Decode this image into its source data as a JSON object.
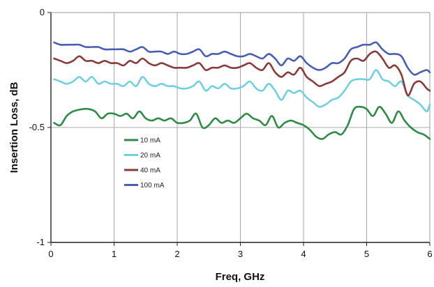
{
  "chart_data": {
    "type": "line",
    "title": "",
    "xlabel": "Freq, GHz",
    "ylabel": "Insertion Loss, dB",
    "xlim": [
      0,
      6
    ],
    "ylim": [
      -1,
      0
    ],
    "x_ticks": [
      0,
      1,
      2,
      3,
      4,
      5,
      6
    ],
    "x_tick_labels": [
      "0",
      "1",
      "2",
      "3",
      "4",
      "5",
      "6"
    ],
    "y_ticks": [
      0,
      -0.5,
      -1
    ],
    "y_tick_labels": [
      "0",
      "-0.5",
      "-1"
    ],
    "grid": true,
    "legend_position": "center-left",
    "series": [
      {
        "name": "10 mA",
        "color": "#2e8b45",
        "points": [
          [
            0.05,
            -0.48
          ],
          [
            0.15,
            -0.49
          ],
          [
            0.25,
            -0.45
          ],
          [
            0.35,
            -0.43
          ],
          [
            0.5,
            -0.42
          ],
          [
            0.6,
            -0.42
          ],
          [
            0.7,
            -0.43
          ],
          [
            0.8,
            -0.46
          ],
          [
            0.9,
            -0.44
          ],
          [
            1.0,
            -0.44
          ],
          [
            1.1,
            -0.45
          ],
          [
            1.2,
            -0.44
          ],
          [
            1.3,
            -0.46
          ],
          [
            1.4,
            -0.43
          ],
          [
            1.5,
            -0.46
          ],
          [
            1.6,
            -0.47
          ],
          [
            1.7,
            -0.46
          ],
          [
            1.8,
            -0.47
          ],
          [
            1.9,
            -0.46
          ],
          [
            2.0,
            -0.48
          ],
          [
            2.1,
            -0.48
          ],
          [
            2.2,
            -0.47
          ],
          [
            2.3,
            -0.44
          ],
          [
            2.4,
            -0.5
          ],
          [
            2.5,
            -0.49
          ],
          [
            2.6,
            -0.46
          ],
          [
            2.7,
            -0.48
          ],
          [
            2.8,
            -0.47
          ],
          [
            2.9,
            -0.48
          ],
          [
            3.0,
            -0.46
          ],
          [
            3.1,
            -0.44
          ],
          [
            3.2,
            -0.46
          ],
          [
            3.3,
            -0.47
          ],
          [
            3.4,
            -0.49
          ],
          [
            3.5,
            -0.45
          ],
          [
            3.6,
            -0.5
          ],
          [
            3.7,
            -0.48
          ],
          [
            3.8,
            -0.47
          ],
          [
            3.9,
            -0.48
          ],
          [
            4.0,
            -0.49
          ],
          [
            4.1,
            -0.51
          ],
          [
            4.2,
            -0.54
          ],
          [
            4.3,
            -0.55
          ],
          [
            4.4,
            -0.53
          ],
          [
            4.5,
            -0.52
          ],
          [
            4.6,
            -0.53
          ],
          [
            4.7,
            -0.49
          ],
          [
            4.8,
            -0.42
          ],
          [
            4.9,
            -0.41
          ],
          [
            5.0,
            -0.42
          ],
          [
            5.1,
            -0.45
          ],
          [
            5.2,
            -0.41
          ],
          [
            5.3,
            -0.44
          ],
          [
            5.4,
            -0.48
          ],
          [
            5.5,
            -0.43
          ],
          [
            5.6,
            -0.47
          ],
          [
            5.7,
            -0.5
          ],
          [
            5.8,
            -0.52
          ],
          [
            5.9,
            -0.53
          ],
          [
            6.0,
            -0.55
          ]
        ]
      },
      {
        "name": "20 mA",
        "color": "#6fd0e0",
        "points": [
          [
            0.05,
            -0.29
          ],
          [
            0.15,
            -0.3
          ],
          [
            0.25,
            -0.31
          ],
          [
            0.35,
            -0.3
          ],
          [
            0.45,
            -0.28
          ],
          [
            0.55,
            -0.3
          ],
          [
            0.65,
            -0.28
          ],
          [
            0.75,
            -0.31
          ],
          [
            0.85,
            -0.3
          ],
          [
            0.95,
            -0.31
          ],
          [
            1.05,
            -0.31
          ],
          [
            1.15,
            -0.32
          ],
          [
            1.25,
            -0.3
          ],
          [
            1.35,
            -0.32
          ],
          [
            1.45,
            -0.28
          ],
          [
            1.55,
            -0.31
          ],
          [
            1.65,
            -0.32
          ],
          [
            1.75,
            -0.31
          ],
          [
            1.85,
            -0.32
          ],
          [
            1.95,
            -0.32
          ],
          [
            2.05,
            -0.33
          ],
          [
            2.15,
            -0.33
          ],
          [
            2.25,
            -0.32
          ],
          [
            2.35,
            -0.3
          ],
          [
            2.45,
            -0.34
          ],
          [
            2.55,
            -0.32
          ],
          [
            2.65,
            -0.33
          ],
          [
            2.75,
            -0.31
          ],
          [
            2.85,
            -0.33
          ],
          [
            2.95,
            -0.33
          ],
          [
            3.05,
            -0.32
          ],
          [
            3.15,
            -0.3
          ],
          [
            3.25,
            -0.33
          ],
          [
            3.35,
            -0.34
          ],
          [
            3.45,
            -0.31
          ],
          [
            3.55,
            -0.34
          ],
          [
            3.65,
            -0.38
          ],
          [
            3.75,
            -0.34
          ],
          [
            3.85,
            -0.35
          ],
          [
            3.95,
            -0.34
          ],
          [
            4.05,
            -0.37
          ],
          [
            4.15,
            -0.39
          ],
          [
            4.25,
            -0.41
          ],
          [
            4.35,
            -0.4
          ],
          [
            4.45,
            -0.38
          ],
          [
            4.55,
            -0.37
          ],
          [
            4.65,
            -0.34
          ],
          [
            4.75,
            -0.3
          ],
          [
            4.85,
            -0.29
          ],
          [
            4.95,
            -0.29
          ],
          [
            5.05,
            -0.29
          ],
          [
            5.15,
            -0.25
          ],
          [
            5.25,
            -0.29
          ],
          [
            5.35,
            -0.3
          ],
          [
            5.45,
            -0.32
          ],
          [
            5.55,
            -0.3
          ],
          [
            5.65,
            -0.36
          ],
          [
            5.75,
            -0.38
          ],
          [
            5.85,
            -0.4
          ],
          [
            5.95,
            -0.43
          ],
          [
            6.0,
            -0.4
          ]
        ]
      },
      {
        "name": "40 mA",
        "color": "#8b3a3a",
        "points": [
          [
            0.05,
            -0.2
          ],
          [
            0.15,
            -0.21
          ],
          [
            0.25,
            -0.22
          ],
          [
            0.35,
            -0.21
          ],
          [
            0.45,
            -0.19
          ],
          [
            0.55,
            -0.21
          ],
          [
            0.65,
            -0.21
          ],
          [
            0.75,
            -0.22
          ],
          [
            0.85,
            -0.21
          ],
          [
            0.95,
            -0.22
          ],
          [
            1.05,
            -0.22
          ],
          [
            1.15,
            -0.23
          ],
          [
            1.25,
            -0.21
          ],
          [
            1.35,
            -0.22
          ],
          [
            1.45,
            -0.2
          ],
          [
            1.55,
            -0.22
          ],
          [
            1.65,
            -0.23
          ],
          [
            1.75,
            -0.22
          ],
          [
            1.85,
            -0.23
          ],
          [
            1.95,
            -0.24
          ],
          [
            2.05,
            -0.24
          ],
          [
            2.15,
            -0.24
          ],
          [
            2.25,
            -0.23
          ],
          [
            2.35,
            -0.22
          ],
          [
            2.45,
            -0.25
          ],
          [
            2.55,
            -0.24
          ],
          [
            2.65,
            -0.24
          ],
          [
            2.75,
            -0.23
          ],
          [
            2.85,
            -0.24
          ],
          [
            2.95,
            -0.24
          ],
          [
            3.05,
            -0.23
          ],
          [
            3.15,
            -0.22
          ],
          [
            3.25,
            -0.24
          ],
          [
            3.35,
            -0.25
          ],
          [
            3.45,
            -0.22
          ],
          [
            3.55,
            -0.26
          ],
          [
            3.65,
            -0.28
          ],
          [
            3.75,
            -0.26
          ],
          [
            3.85,
            -0.27
          ],
          [
            3.95,
            -0.24
          ],
          [
            4.05,
            -0.28
          ],
          [
            4.15,
            -0.3
          ],
          [
            4.25,
            -0.32
          ],
          [
            4.35,
            -0.31
          ],
          [
            4.45,
            -0.3
          ],
          [
            4.55,
            -0.28
          ],
          [
            4.65,
            -0.26
          ],
          [
            4.75,
            -0.21
          ],
          [
            4.85,
            -0.2
          ],
          [
            4.95,
            -0.21
          ],
          [
            5.05,
            -0.18
          ],
          [
            5.15,
            -0.17
          ],
          [
            5.25,
            -0.2
          ],
          [
            5.35,
            -0.24
          ],
          [
            5.45,
            -0.23
          ],
          [
            5.55,
            -0.27
          ],
          [
            5.65,
            -0.36
          ],
          [
            5.75,
            -0.31
          ],
          [
            5.85,
            -0.3
          ],
          [
            5.95,
            -0.33
          ],
          [
            6.0,
            -0.34
          ]
        ]
      },
      {
        "name": "100 mA",
        "color": "#4a5db5",
        "points": [
          [
            0.05,
            -0.13
          ],
          [
            0.15,
            -0.14
          ],
          [
            0.25,
            -0.14
          ],
          [
            0.35,
            -0.14
          ],
          [
            0.45,
            -0.14
          ],
          [
            0.55,
            -0.15
          ],
          [
            0.65,
            -0.15
          ],
          [
            0.75,
            -0.15
          ],
          [
            0.85,
            -0.16
          ],
          [
            0.95,
            -0.16
          ],
          [
            1.05,
            -0.16
          ],
          [
            1.15,
            -0.16
          ],
          [
            1.25,
            -0.17
          ],
          [
            1.35,
            -0.16
          ],
          [
            1.45,
            -0.15
          ],
          [
            1.55,
            -0.17
          ],
          [
            1.65,
            -0.17
          ],
          [
            1.75,
            -0.17
          ],
          [
            1.85,
            -0.18
          ],
          [
            1.95,
            -0.17
          ],
          [
            2.05,
            -0.18
          ],
          [
            2.15,
            -0.18
          ],
          [
            2.25,
            -0.17
          ],
          [
            2.35,
            -0.16
          ],
          [
            2.45,
            -0.19
          ],
          [
            2.55,
            -0.18
          ],
          [
            2.65,
            -0.18
          ],
          [
            2.75,
            -0.17
          ],
          [
            2.85,
            -0.18
          ],
          [
            2.95,
            -0.19
          ],
          [
            3.05,
            -0.19
          ],
          [
            3.15,
            -0.18
          ],
          [
            3.25,
            -0.19
          ],
          [
            3.35,
            -0.2
          ],
          [
            3.45,
            -0.18
          ],
          [
            3.55,
            -0.2
          ],
          [
            3.65,
            -0.23
          ],
          [
            3.75,
            -0.2
          ],
          [
            3.85,
            -0.21
          ],
          [
            3.95,
            -0.19
          ],
          [
            4.05,
            -0.22
          ],
          [
            4.15,
            -0.24
          ],
          [
            4.25,
            -0.25
          ],
          [
            4.35,
            -0.24
          ],
          [
            4.45,
            -0.22
          ],
          [
            4.55,
            -0.22
          ],
          [
            4.65,
            -0.2
          ],
          [
            4.75,
            -0.16
          ],
          [
            4.85,
            -0.15
          ],
          [
            4.95,
            -0.14
          ],
          [
            5.05,
            -0.14
          ],
          [
            5.15,
            -0.13
          ],
          [
            5.25,
            -0.16
          ],
          [
            5.35,
            -0.18
          ],
          [
            5.45,
            -0.18
          ],
          [
            5.55,
            -0.19
          ],
          [
            5.65,
            -0.24
          ],
          [
            5.75,
            -0.27
          ],
          [
            5.85,
            -0.26
          ],
          [
            5.95,
            -0.25
          ],
          [
            6.0,
            -0.26
          ]
        ]
      }
    ]
  }
}
